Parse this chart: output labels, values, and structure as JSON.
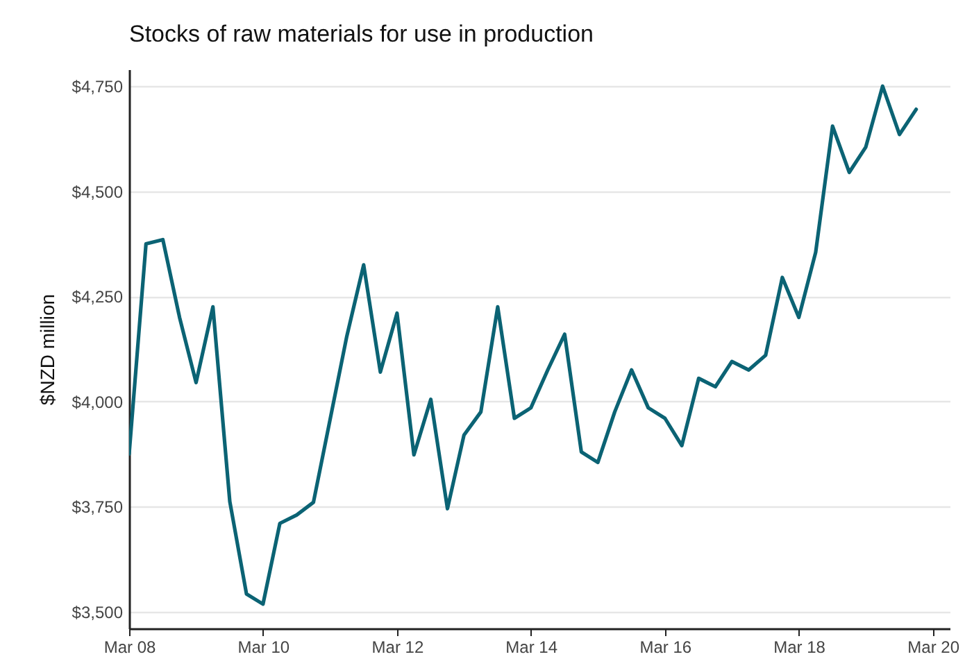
{
  "chart_data": {
    "type": "line",
    "title": "Stocks of raw materials for use in production",
    "ylabel": "$NZD million",
    "x": [
      "2008-03",
      "2008-06",
      "2008-09",
      "2008-12",
      "2009-03",
      "2009-06",
      "2009-09",
      "2009-12",
      "2010-03",
      "2010-06",
      "2010-09",
      "2010-12",
      "2011-03",
      "2011-06",
      "2011-09",
      "2011-12",
      "2012-03",
      "2012-06",
      "2012-09",
      "2012-12",
      "2013-03",
      "2013-06",
      "2013-09",
      "2013-12",
      "2014-03",
      "2014-06",
      "2014-09",
      "2014-12",
      "2015-03",
      "2015-06",
      "2015-09",
      "2015-12",
      "2016-03",
      "2016-06",
      "2016-09",
      "2016-12",
      "2017-03",
      "2017-06",
      "2017-09",
      "2017-12",
      "2018-03",
      "2018-06",
      "2018-09",
      "2018-12",
      "2019-03",
      "2019-06",
      "2019-09",
      "2019-12"
    ],
    "series": [
      {
        "color": "#0b6374",
        "values": [
          3875,
          4375,
          4385,
          4200,
          4045,
          4225,
          3762,
          3542,
          3518,
          3710,
          3730,
          3760,
          3955,
          4155,
          4325,
          4070,
          4210,
          3873,
          4005,
          3745,
          3920,
          3975,
          4225,
          3960,
          3985,
          4075,
          4160,
          3880,
          3855,
          3975,
          4075,
          3985,
          3960,
          3895,
          4055,
          4035,
          4095,
          4075,
          4110,
          4295,
          4200,
          4355,
          4655,
          4545,
          4605,
          4750,
          4635,
          4695
        ]
      }
    ],
    "xlim": [
      "2008-03",
      "2020-06"
    ],
    "xticks": [
      {
        "value": "2008-03",
        "label": "Mar 08"
      },
      {
        "value": "2010-03",
        "label": "Mar 10"
      },
      {
        "value": "2012-03",
        "label": "Mar 12"
      },
      {
        "value": "2014-03",
        "label": "Mar 14"
      },
      {
        "value": "2016-03",
        "label": "Mar 16"
      },
      {
        "value": "2018-03",
        "label": "Mar 18"
      },
      {
        "value": "2020-03",
        "label": "Mar 20"
      }
    ],
    "ylim": [
      3460,
      4790
    ],
    "yticks": [
      {
        "value": 3500,
        "label": "$3,500"
      },
      {
        "value": 3750,
        "label": "$3,750"
      },
      {
        "value": 4000,
        "label": "$4,000"
      },
      {
        "value": 4250,
        "label": "$4,250"
      },
      {
        "value": 4500,
        "label": "$4,500"
      },
      {
        "value": 4750,
        "label": "$4,750"
      }
    ],
    "grid": "y",
    "line_style": "solid"
  }
}
